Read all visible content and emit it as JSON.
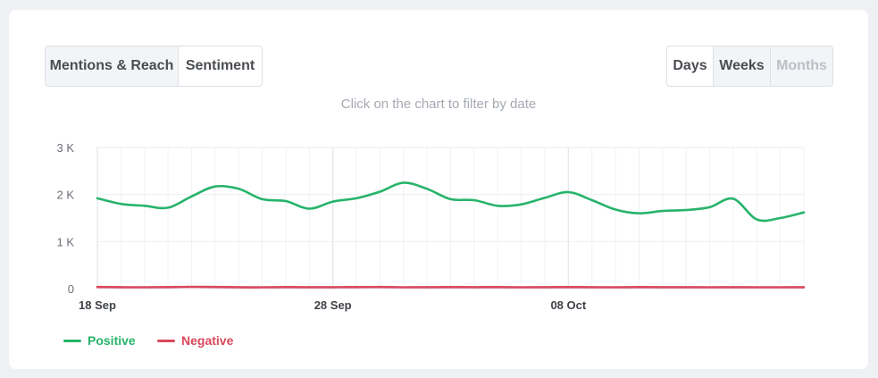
{
  "tabs": {
    "mentions_reach": "Mentions & Reach",
    "sentiment": "Sentiment"
  },
  "period": {
    "days": "Days",
    "weeks": "Weeks",
    "months": "Months"
  },
  "hint": "Click on the chart to filter by date",
  "colors": {
    "positive": "#27b36a",
    "negative": "#d9485c"
  },
  "chart_data": {
    "type": "line",
    "x": [
      "2023-09-18",
      "2023-09-19",
      "2023-09-20",
      "2023-09-21",
      "2023-09-22",
      "2023-09-23",
      "2023-09-24",
      "2023-09-25",
      "2023-09-26",
      "2023-09-27",
      "2023-09-28",
      "2023-09-29",
      "2023-09-30",
      "2023-10-01",
      "2023-10-02",
      "2023-10-03",
      "2023-10-04",
      "2023-10-05",
      "2023-10-06",
      "2023-10-07",
      "2023-10-08",
      "2023-10-09",
      "2023-10-10",
      "2023-10-11",
      "2023-10-12",
      "2023-10-13",
      "2023-10-14",
      "2023-10-15",
      "2023-10-16",
      "2023-10-17",
      "2023-10-18"
    ],
    "x_tick_labels": [
      "18 Sep",
      "28 Sep",
      "08 Oct"
    ],
    "x_tick_dates": [
      "2023-09-18",
      "2023-09-28",
      "2023-10-08"
    ],
    "y_tick_labels": [
      "0",
      "1 K",
      "2 K",
      "3 K"
    ],
    "y_tick_values": [
      0,
      1000,
      2000,
      3000
    ],
    "ylim": [
      0,
      3000
    ],
    "series": [
      {
        "name": "Positive",
        "color": "#27b36a",
        "values": [
          1920,
          1800,
          1760,
          1720,
          1960,
          2170,
          2120,
          1900,
          1860,
          1700,
          1850,
          1920,
          2060,
          2250,
          2120,
          1900,
          1880,
          1760,
          1790,
          1930,
          2050,
          1880,
          1680,
          1600,
          1650,
          1670,
          1730,
          1910,
          1470,
          1500,
          1620
        ]
      },
      {
        "name": "Negative",
        "color": "#d9485c",
        "values": [
          35,
          30,
          28,
          32,
          38,
          34,
          30,
          28,
          33,
          31,
          30,
          32,
          34,
          29,
          31,
          33,
          30,
          32,
          29,
          31,
          33,
          30,
          28,
          32,
          31,
          30,
          29,
          30,
          28,
          29,
          30
        ]
      }
    ],
    "grid": true,
    "legend_position": "bottom-left"
  }
}
